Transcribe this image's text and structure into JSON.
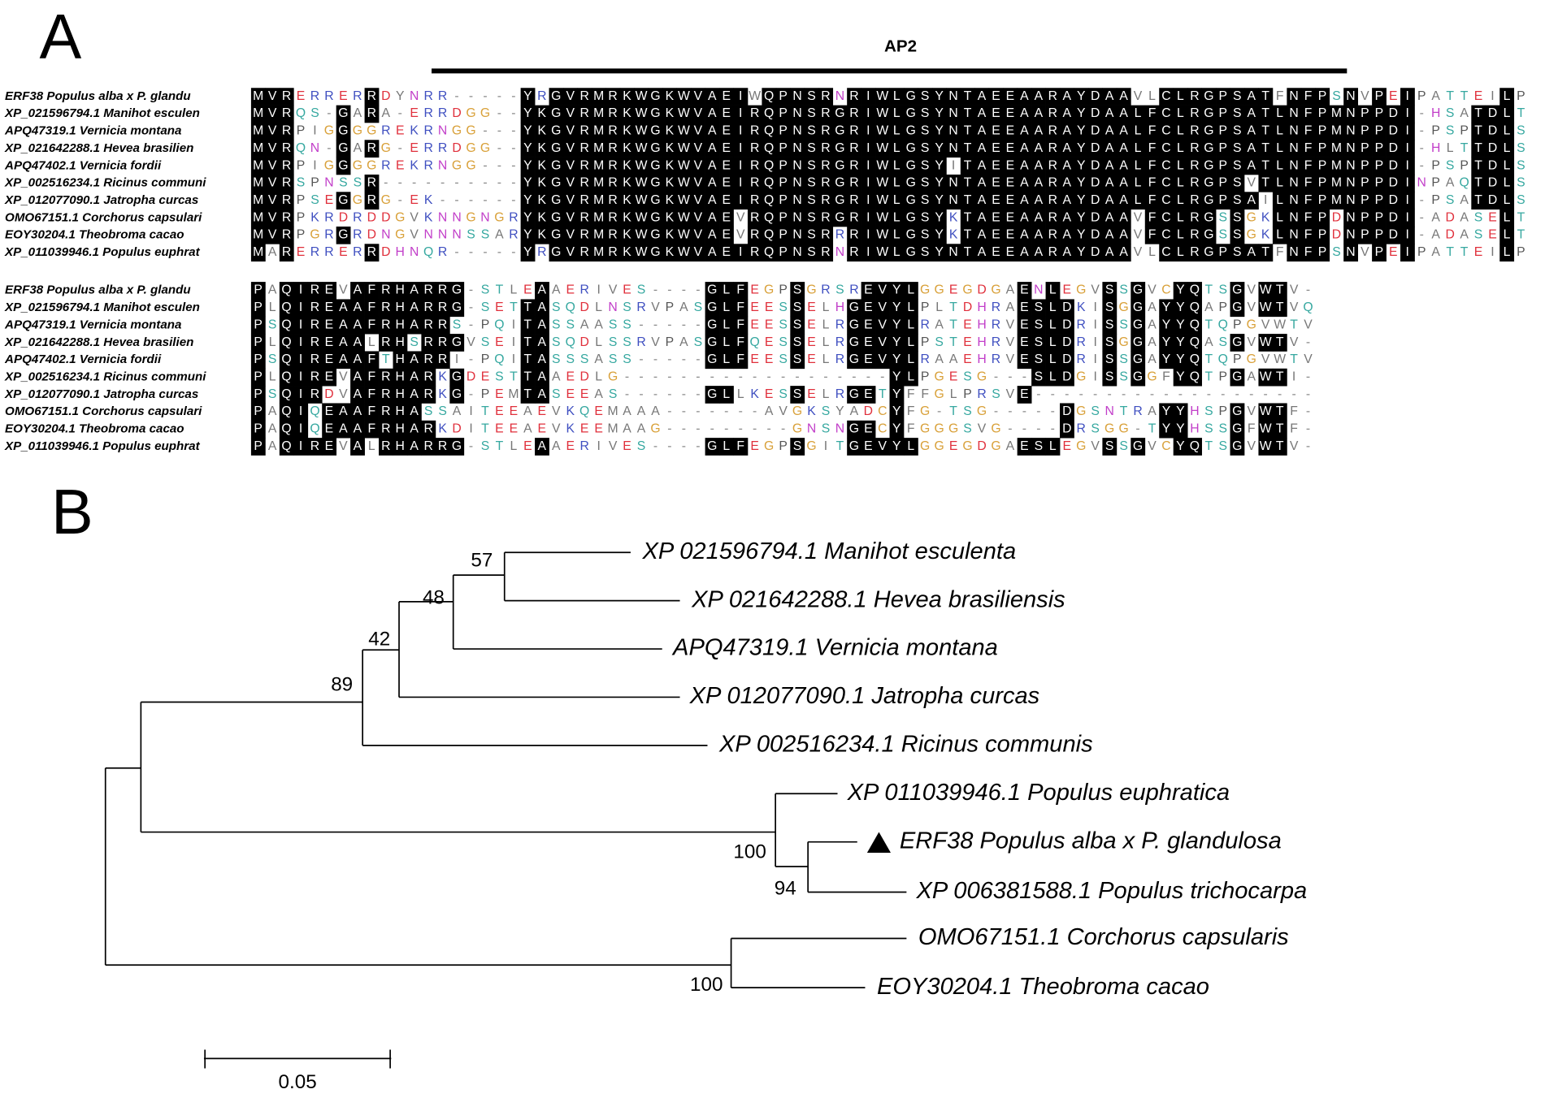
{
  "figure": {
    "panel_a_label": "A",
    "panel_b_label": "B",
    "domain_label": "AP2",
    "alignment": {
      "blocks": [
        {
          "rows": [
            {
              "name": "ERF38 Populus alba x P. glandu",
              "sequence": "MVRERRERRDYNRR-----YRGVRMRKWGKWVAEIWQPNSRNRIWLGSYNTAEEAARAYDAAVLCLRGPSATFNFPSNVPEIPATTEILP"
            },
            {
              "name": "XP_021596794.1 Manihot esculen",
              "sequence": "MVRQS-GARA-ERRDGG--YKGVRMRKWGKWVAEIRQPNSRGRIWLGSYNTAEEAARAYDAALFCLRGPSATLNFPMNPPDI-HSATDLT"
            },
            {
              "name": "APQ47319.1 Vernicia montana",
              "sequence": "MVRPIGGGGREKRNGG---YKGVRMRKWGKWVAEIRQPNSRGRIWLGSYNTAEEAARAYDAALFCLRGPSATLNFPMNPPDI-PSPTDLS"
            },
            {
              "name": "XP_021642288.1 Hevea brasilien",
              "sequence": "MVRQN-GARG-ERRDGG--YKGVRMRKWGKWVAEIRQPNSRGRIWLGSYNTAEEAARAYDAALFCLRGPSATLNFPMNPPDI-HLTTDLS"
            },
            {
              "name": "APQ47402.1 Vernicia fordii",
              "sequence": "MVRPIGGGGREKRNGG---YKGVRMRKWGKWVAEIRQPNSRGRIWLGSYITAEEAARAYDAALFCLRGPSATLNFPMNPPDI-PSPTDLS"
            },
            {
              "name": "XP_002516234.1 Ricinus communi",
              "sequence": "MVRSPNSSR----------YKGVRMRKWGKWVAEIRQPNSRGRIWLGSYNTAEEAARAYDAALFCLRGPSVTLNFPMNPPDINPAQTDLS"
            },
            {
              "name": "XP_012077090.1 Jatropha curcas",
              "sequence": "MVRPSEGGRG-EK------YKGVRMRKWGKWVAEIRQPNSRGRIWLGSYNTAEEAARAYDAALFCLRGPSAILNFPMNPPDI-PSATDLS"
            },
            {
              "name": "OMO67151.1 Corchorus capsulari",
              "sequence": "MVRPKRDRDDGVKNNGNGRYKGVRMRKWGKWVAEVRQPNSRGRIWLGSYKTAEEAARAYDAAVFCLRGSSGKLNFPDNPPDI-ADASELT"
            },
            {
              "name": "EOY30204.1 Theobroma cacao",
              "sequence": "MVRPGRGRDNGVNNNSSARYKGVRMRKWGKWVAEVRQPNSRRRIWLGSYKTAEEAARAYDAAVFCLRGSSGKLNFPDNPPDI-ADASELT"
            },
            {
              "name": "XP_011039946.1 Populus euphrat",
              "sequence": "MARERRERRDHNQR-----YRGVRMRKWGKWVAEIRQPNSRNRIWLGSYNTAEEAARAYDAAVLCLRGPSATFNFPSNVPEIPATTEILP"
            }
          ]
        },
        {
          "rows": [
            {
              "name": "ERF38 Populus alba x P. glandu",
              "sequence": "PAQIREVAFRHARRG-STLEAAERIVES----GLFEGPSGRSREVYLGGEGDGAENLEGVSSGVCYQTSGVWTV-"
            },
            {
              "name": "XP_021596794.1 Manihot esculen",
              "sequence": "PLQIREAAFRHARRG-SETTASQDLNSRVPASGLFEESSELHGEVYLPLTDHRAESLDKISGGAYYQAPGVWTVQ"
            },
            {
              "name": "APQ47319.1 Vernicia montana",
              "sequence": "PSQIREAAFRHARRS-PQITASSAASS-----GLFEESSELRGEVYLRATEHRVESLDRISSGAYYQTQPGVWTV"
            },
            {
              "name": "XP_021642288.1 Hevea brasilien",
              "sequence": "PLQIREAALRHSRRGVSEITASQDLSSRVPASGLFQESSELRGEVYLPSTEHRVESLDRISGGAYYQASGVWTV-"
            },
            {
              "name": "APQ47402.1 Vernicia fordii",
              "sequence": "PSQIREAAFTHARRI-PQITASSSASS-----GLFEESSELRGEVYLRAAEHRVESLDRISSGAYYQTQPGVWTV"
            },
            {
              "name": "XP_002516234.1 Ricinus communi",
              "sequence": "PLQIREVAFRHARKGDESTTAAEDLG-------------------YLPGESG---SLDGISSGGFYQTPGAWTI-"
            },
            {
              "name": "XP_012077090.1 Jatropha curcas",
              "sequence": "PSQIRDVAFRHARKG-PEMTASEEAS------GLLKESSELRGETYFFGLPRSVE--------------------"
            },
            {
              "name": "OMO67151.1 Corchorus capsulari",
              "sequence": "PAQIQEAAFRHASSAITEEAEVKQEMAAA-------AVGKSYADCYFG-TSG-----DGSNTRAYYHSPGVWTF-"
            },
            {
              "name": "EOY30204.1 Theobroma cacao",
              "sequence": "PAQIQEAAFRHARKDITEEAEVKEEMAAG---------GNSNGECYFGGGSVG----DRSGG-TYYHSSGFWTF-"
            },
            {
              "name": "XP_011039946.1 Populus euphrat",
              "sequence": "PAQIREVALRHARRG-STLEAAERIVES----GLFEGPSGITGEVYLGGEGDGAESLEGVSSGVCYQTSGVWTV-"
            }
          ]
        }
      ]
    },
    "tree": {
      "leaves": [
        "XP 021596794.1 Manihot esculenta",
        "XP 021642288.1 Hevea brasiliensis",
        "APQ47319.1 Vernicia montana",
        "XP 012077090.1 Jatropha curcas",
        "XP 002516234.1 Ricinus communis",
        "XP 011039946.1 Populus euphratica",
        "ERF38 Populus alba x P. glandulosa",
        "XP 006381588.1 Populus trichocarpa",
        "OMO67151.1 Corchorus capsularis",
        "EOY30204.1 Theobroma cacao"
      ],
      "bootstrap": [
        57,
        48,
        42,
        89,
        100,
        94,
        100
      ],
      "scale_label": "0.05"
    }
  }
}
